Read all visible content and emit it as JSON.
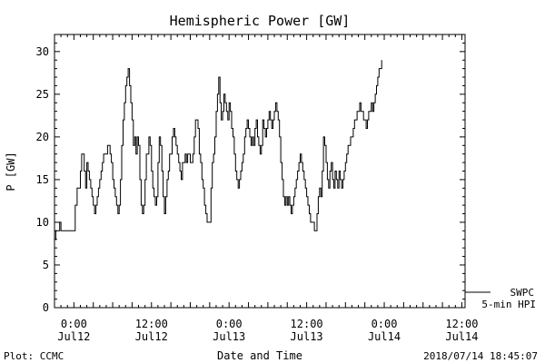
{
  "chart_data": {
    "type": "line",
    "title": "Hemispheric Power [GW]",
    "ylabel": "P [GW]",
    "xlabel": "Date and Time",
    "ylim": [
      0,
      32
    ],
    "yticks": [
      0,
      5,
      10,
      15,
      20,
      25,
      30
    ],
    "x_unit": "hours since 2018-07-11 21:00 UTC",
    "xlim": [
      0,
      63.5
    ],
    "xticks": [
      {
        "time": "0:00",
        "date": "Jul12",
        "x": 3
      },
      {
        "time": "12:00",
        "date": "Jul12",
        "x": 15
      },
      {
        "time": "0:00",
        "date": "Jul13",
        "x": 27
      },
      {
        "time": "12:00",
        "date": "Jul13",
        "x": 39
      },
      {
        "time": "0:00",
        "date": "Jul14",
        "x": 51
      },
      {
        "time": "12:00",
        "date": "Jul14",
        "x": 63
      }
    ],
    "grid": false,
    "legend": {
      "position": "bottom-right",
      "entries": [
        "SWPC",
        "5-min HPI"
      ]
    },
    "series": [
      {
        "name": "SWPC",
        "points": [
          [
            0.0,
            8
          ],
          [
            0.2,
            9
          ],
          [
            0.6,
            9
          ],
          [
            0.8,
            10
          ],
          [
            1.0,
            9
          ],
          [
            1.5,
            9
          ],
          [
            2.0,
            9
          ],
          [
            2.5,
            9
          ],
          [
            3.0,
            9
          ],
          [
            3.2,
            12
          ],
          [
            3.5,
            14
          ],
          [
            3.8,
            14
          ],
          [
            4.0,
            16
          ],
          [
            4.2,
            18
          ],
          [
            4.4,
            18
          ],
          [
            4.6,
            16
          ],
          [
            4.8,
            14
          ],
          [
            5.0,
            17
          ],
          [
            5.2,
            16
          ],
          [
            5.4,
            15
          ],
          [
            5.6,
            14
          ],
          [
            5.8,
            13
          ],
          [
            6.0,
            12
          ],
          [
            6.2,
            11
          ],
          [
            6.4,
            12
          ],
          [
            6.6,
            13
          ],
          [
            6.8,
            14
          ],
          [
            7.0,
            15
          ],
          [
            7.2,
            16
          ],
          [
            7.4,
            17
          ],
          [
            7.6,
            18
          ],
          [
            8.0,
            18
          ],
          [
            8.2,
            19
          ],
          [
            8.4,
            19
          ],
          [
            8.6,
            18
          ],
          [
            8.8,
            17
          ],
          [
            9.0,
            15
          ],
          [
            9.2,
            14
          ],
          [
            9.4,
            13
          ],
          [
            9.6,
            12
          ],
          [
            9.8,
            11
          ],
          [
            10.0,
            12
          ],
          [
            10.2,
            15
          ],
          [
            10.4,
            19
          ],
          [
            10.6,
            22
          ],
          [
            10.8,
            24
          ],
          [
            11.0,
            26
          ],
          [
            11.2,
            27
          ],
          [
            11.4,
            28
          ],
          [
            11.6,
            26
          ],
          [
            11.8,
            24
          ],
          [
            12.0,
            22
          ],
          [
            12.2,
            19
          ],
          [
            12.4,
            20
          ],
          [
            12.6,
            18
          ],
          [
            12.8,
            20
          ],
          [
            13.0,
            19
          ],
          [
            13.2,
            15
          ],
          [
            13.4,
            12
          ],
          [
            13.6,
            11
          ],
          [
            13.8,
            12
          ],
          [
            14.0,
            15
          ],
          [
            14.2,
            18
          ],
          [
            14.4,
            18
          ],
          [
            14.6,
            20
          ],
          [
            14.8,
            19
          ],
          [
            15.0,
            16
          ],
          [
            15.2,
            14
          ],
          [
            15.4,
            13
          ],
          [
            15.6,
            12
          ],
          [
            15.8,
            13
          ],
          [
            16.0,
            17
          ],
          [
            16.2,
            20
          ],
          [
            16.4,
            19
          ],
          [
            16.6,
            16
          ],
          [
            16.8,
            13
          ],
          [
            17.0,
            11
          ],
          [
            17.2,
            13
          ],
          [
            17.4,
            15
          ],
          [
            17.6,
            16
          ],
          [
            17.8,
            18
          ],
          [
            18.0,
            18
          ],
          [
            18.2,
            20
          ],
          [
            18.4,
            21
          ],
          [
            18.6,
            20
          ],
          [
            18.8,
            19
          ],
          [
            19.0,
            18
          ],
          [
            19.2,
            17
          ],
          [
            19.4,
            16
          ],
          [
            19.6,
            15
          ],
          [
            19.8,
            17
          ],
          [
            20.0,
            17
          ],
          [
            20.2,
            18
          ],
          [
            20.4,
            17
          ],
          [
            20.6,
            18
          ],
          [
            20.8,
            18
          ],
          [
            21.0,
            17
          ],
          [
            21.2,
            17
          ],
          [
            21.4,
            18
          ],
          [
            21.6,
            20
          ],
          [
            21.8,
            22
          ],
          [
            22.0,
            22
          ],
          [
            22.2,
            21
          ],
          [
            22.4,
            18
          ],
          [
            22.6,
            17
          ],
          [
            22.8,
            15
          ],
          [
            23.0,
            14
          ],
          [
            23.2,
            12
          ],
          [
            23.4,
            11
          ],
          [
            23.6,
            10
          ],
          [
            23.8,
            10
          ],
          [
            24.0,
            10
          ],
          [
            24.2,
            14
          ],
          [
            24.4,
            17
          ],
          [
            24.6,
            18
          ],
          [
            24.8,
            20
          ],
          [
            25.0,
            23
          ],
          [
            25.2,
            25
          ],
          [
            25.4,
            27
          ],
          [
            25.6,
            24
          ],
          [
            25.8,
            22
          ],
          [
            26.0,
            23
          ],
          [
            26.2,
            25
          ],
          [
            26.4,
            24
          ],
          [
            26.6,
            23
          ],
          [
            26.8,
            22
          ],
          [
            27.0,
            24
          ],
          [
            27.2,
            23
          ],
          [
            27.4,
            21
          ],
          [
            27.6,
            20
          ],
          [
            27.8,
            18
          ],
          [
            28.0,
            16
          ],
          [
            28.2,
            15
          ],
          [
            28.4,
            14
          ],
          [
            28.6,
            15
          ],
          [
            28.8,
            16
          ],
          [
            29.0,
            17
          ],
          [
            29.2,
            18
          ],
          [
            29.4,
            20
          ],
          [
            29.6,
            21
          ],
          [
            29.8,
            22
          ],
          [
            30.0,
            21
          ],
          [
            30.2,
            20
          ],
          [
            30.4,
            19
          ],
          [
            30.6,
            20
          ],
          [
            30.8,
            19
          ],
          [
            31.0,
            21
          ],
          [
            31.2,
            22
          ],
          [
            31.4,
            20
          ],
          [
            31.6,
            19
          ],
          [
            31.8,
            18
          ],
          [
            32.0,
            19
          ],
          [
            32.2,
            22
          ],
          [
            32.4,
            21
          ],
          [
            32.6,
            20
          ],
          [
            32.8,
            21
          ],
          [
            33.0,
            22
          ],
          [
            33.2,
            23
          ],
          [
            33.4,
            22
          ],
          [
            33.6,
            21
          ],
          [
            33.8,
            22
          ],
          [
            34.0,
            23
          ],
          [
            34.2,
            24
          ],
          [
            34.4,
            23
          ],
          [
            34.6,
            22
          ],
          [
            34.8,
            20
          ],
          [
            35.0,
            17
          ],
          [
            35.2,
            15
          ],
          [
            35.4,
            13
          ],
          [
            35.6,
            12
          ],
          [
            35.8,
            13
          ],
          [
            36.0,
            12
          ],
          [
            36.2,
            13
          ],
          [
            36.4,
            12
          ],
          [
            36.6,
            11
          ],
          [
            36.8,
            12
          ],
          [
            37.0,
            13
          ],
          [
            37.2,
            14
          ],
          [
            37.4,
            15
          ],
          [
            37.6,
            16
          ],
          [
            37.8,
            17
          ],
          [
            38.0,
            18
          ],
          [
            38.2,
            17
          ],
          [
            38.4,
            16
          ],
          [
            38.6,
            15
          ],
          [
            38.8,
            14
          ],
          [
            39.0,
            13
          ],
          [
            39.2,
            12
          ],
          [
            39.4,
            11
          ],
          [
            39.6,
            10
          ],
          [
            39.8,
            10
          ],
          [
            40.0,
            10
          ],
          [
            40.2,
            9
          ],
          [
            40.4,
            9
          ],
          [
            40.6,
            11
          ],
          [
            40.8,
            13
          ],
          [
            41.0,
            14
          ],
          [
            41.2,
            13
          ],
          [
            41.4,
            16
          ],
          [
            41.6,
            20
          ],
          [
            41.8,
            19
          ],
          [
            42.0,
            17
          ],
          [
            42.2,
            15
          ],
          [
            42.4,
            14
          ],
          [
            42.6,
            16
          ],
          [
            42.8,
            17
          ],
          [
            43.0,
            15
          ],
          [
            43.2,
            14
          ],
          [
            43.4,
            16
          ],
          [
            43.6,
            15
          ],
          [
            43.8,
            14
          ],
          [
            44.0,
            16
          ],
          [
            44.2,
            15
          ],
          [
            44.4,
            14
          ],
          [
            44.6,
            15
          ],
          [
            44.8,
            16
          ],
          [
            45.0,
            17
          ],
          [
            45.2,
            18
          ],
          [
            45.4,
            19
          ],
          [
            45.6,
            19
          ],
          [
            45.8,
            20
          ],
          [
            46.0,
            20
          ],
          [
            46.2,
            21
          ],
          [
            46.4,
            22
          ],
          [
            46.6,
            22
          ],
          [
            46.8,
            23
          ],
          [
            47.0,
            23
          ],
          [
            47.2,
            24
          ],
          [
            47.4,
            23
          ],
          [
            47.6,
            23
          ],
          [
            47.8,
            22
          ],
          [
            48.0,
            22
          ],
          [
            48.2,
            21
          ],
          [
            48.4,
            22
          ],
          [
            48.6,
            23
          ],
          [
            48.8,
            23
          ],
          [
            49.0,
            24
          ],
          [
            49.2,
            23
          ],
          [
            49.4,
            24
          ],
          [
            49.6,
            25
          ],
          [
            49.8,
            26
          ],
          [
            50.0,
            27
          ],
          [
            50.2,
            28
          ],
          [
            50.4,
            28
          ],
          [
            50.6,
            29
          ]
        ]
      }
    ]
  },
  "footer": {
    "left": "Plot: CCMC",
    "right": "2018/07/14 18:45:07"
  }
}
